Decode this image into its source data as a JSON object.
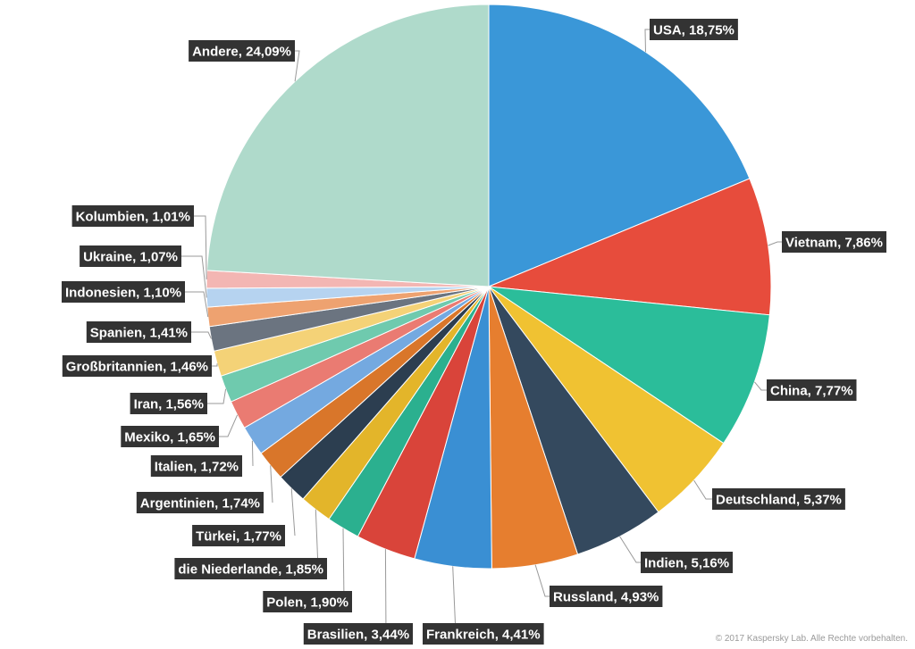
{
  "chart_data": {
    "type": "pie",
    "title": "",
    "start_angle_deg": 0,
    "direction": "clockwise",
    "slices": [
      {
        "label": "USA",
        "value": 18.75,
        "display": "USA, 18,75%",
        "color": "#3a97d8"
      },
      {
        "label": "Vietnam",
        "value": 7.86,
        "display": "Vietnam, 7,86%",
        "color": "#e74c3c"
      },
      {
        "label": "China",
        "value": 7.77,
        "display": "China, 7,77%",
        "color": "#2bbd9a"
      },
      {
        "label": "Deutschland",
        "value": 5.37,
        "display": "Deutschland, 5,37%",
        "color": "#f0c232"
      },
      {
        "label": "Indien",
        "value": 5.16,
        "display": "Indien, 5,16%",
        "color": "#34495e"
      },
      {
        "label": "Russland",
        "value": 4.93,
        "display": "Russland, 4,93%",
        "color": "#e67e2f"
      },
      {
        "label": "Frankreich",
        "value": 4.41,
        "display": "Frankreich, 4,41%",
        "color": "#3a8fd3"
      },
      {
        "label": "Brasilien",
        "value": 3.44,
        "display": "Brasilien, 3,44%",
        "color": "#d9443a"
      },
      {
        "label": "Polen",
        "value": 1.9,
        "display": "Polen, 1,90%",
        "color": "#2bb08f"
      },
      {
        "label": "die Niederlande",
        "value": 1.85,
        "display": "die Niederlande, 1,85%",
        "color": "#e3b52a"
      },
      {
        "label": "Türkei",
        "value": 1.77,
        "display": "Türkei, 1,77%",
        "color": "#2c3e50"
      },
      {
        "label": "Argentinien",
        "value": 1.74,
        "display": "Argentinien, 1,74%",
        "color": "#d9762a"
      },
      {
        "label": "Italien",
        "value": 1.72,
        "display": "Italien, 1,72%",
        "color": "#74a9e0"
      },
      {
        "label": "Mexiko",
        "value": 1.65,
        "display": "Mexiko, 1,65%",
        "color": "#ea7b72"
      },
      {
        "label": "Iran",
        "value": 1.56,
        "display": "Iran, 1,56%",
        "color": "#6fcaae"
      },
      {
        "label": "Großbritannien",
        "value": 1.46,
        "display": "Großbritannien, 1,46%",
        "color": "#f4d277"
      },
      {
        "label": "Spanien",
        "value": 1.41,
        "display": "Spanien, 1,41%",
        "color": "#6b7480"
      },
      {
        "label": "Indonesien",
        "value": 1.1,
        "display": "Indonesien, 1,10%",
        "color": "#eea270"
      },
      {
        "label": "Ukraine",
        "value": 1.07,
        "display": "Ukraine, 1,07%",
        "color": "#b6d3f0"
      },
      {
        "label": "Kolumbien",
        "value": 1.01,
        "display": "Kolumbien, 1,01%",
        "color": "#f3b6b3"
      },
      {
        "label": "Andere",
        "value": 24.09,
        "display": "Andere, 24,09%",
        "color": "#afdacb"
      }
    ],
    "label_style": {
      "background": "#333333",
      "text_color": "#ffffff",
      "leader_color": "#999999"
    }
  },
  "footer": {
    "copyright": "© 2017 Kaspersky Lab. Alle Rechte vorbehalten."
  }
}
